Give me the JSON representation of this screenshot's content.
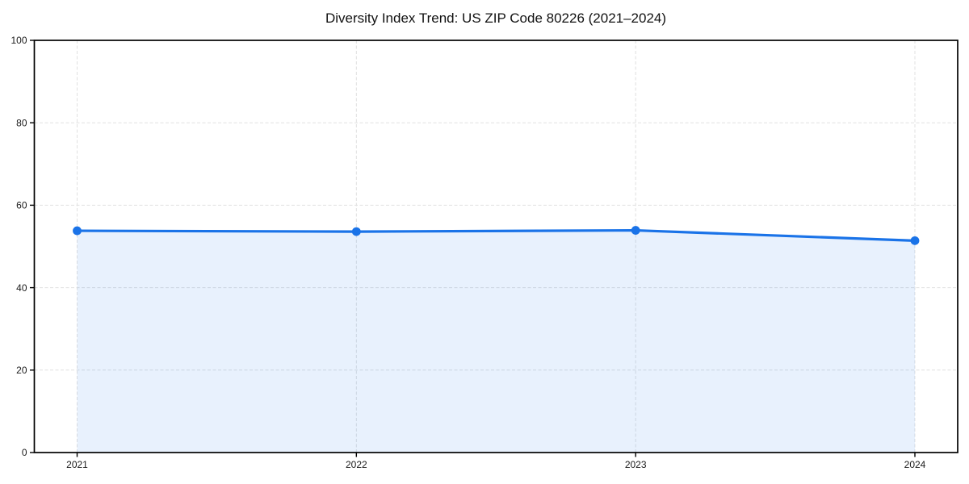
{
  "chart_data": {
    "type": "area",
    "title": "Diversity Index Trend: US ZIP Code 80226 (2021–2024)",
    "x": [
      2021,
      2022,
      2023,
      2024
    ],
    "x_labels": [
      "2021",
      "2022",
      "2023",
      "2024"
    ],
    "values": [
      53.8,
      53.6,
      53.9,
      51.4
    ],
    "xlabel": "",
    "ylabel": "",
    "ylim": [
      0,
      100
    ],
    "yticks": [
      0,
      20,
      40,
      60,
      80,
      100
    ],
    "grid": "dashed-both-axes",
    "legend": "none",
    "marker": "circle",
    "colors": {
      "line": "#1A73E8",
      "fill": "#1A73E8",
      "fill_opacity": 0.1,
      "grid": "#E0E0E0",
      "axis": "#000000",
      "tick_text": "#1A1A1A",
      "background": "#FFFFFF"
    }
  }
}
